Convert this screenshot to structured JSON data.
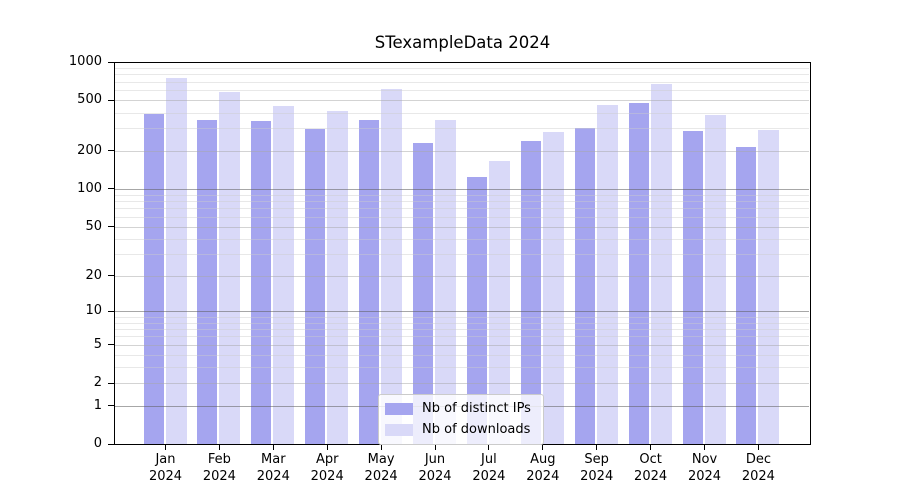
{
  "title": "STexampleData 2024",
  "chart_data": {
    "type": "bar",
    "title": "STexampleData 2024",
    "x_categories": [
      "Jan",
      "Feb",
      "Mar",
      "Apr",
      "May",
      "Jun",
      "Jul",
      "Aug",
      "Sep",
      "Oct",
      "Nov",
      "Dec"
    ],
    "x_year_label": "2024",
    "series": [
      {
        "name": "Nb of distinct IPs",
        "color": "#a5a5ef",
        "values": [
          390,
          350,
          345,
          295,
          350,
          230,
          125,
          240,
          300,
          480,
          285,
          215
        ]
      },
      {
        "name": "Nb of downloads",
        "color": "#d9d9f8",
        "values": [
          750,
          585,
          450,
          415,
          610,
          350,
          165,
          280,
          460,
          670,
          385,
          290
        ]
      }
    ],
    "yscale": "log10(v+1)",
    "ylim": [
      0,
      1000
    ],
    "y_major_ticks": [
      0,
      1,
      2,
      5,
      10,
      20,
      50,
      100,
      200,
      500,
      1000
    ],
    "y_minor_ticks": [
      3,
      4,
      6,
      7,
      8,
      9,
      30,
      40,
      60,
      70,
      80,
      90,
      300,
      400,
      600,
      700,
      800,
      900
    ],
    "grid": "horizontal major + minor, drawn over bars",
    "legend_position": "lower center"
  },
  "colors": {
    "bar_distinct_ips": "#a5a5ef",
    "bar_downloads": "#d9d9f8",
    "grid_power_line": "#9f9f9f",
    "grid_step_line": "#d4d4d4",
    "grid_minor_line": "#e7e7e7",
    "axis": "#000000",
    "legend_border": "#cbcbcb",
    "background": "#ffffff"
  }
}
